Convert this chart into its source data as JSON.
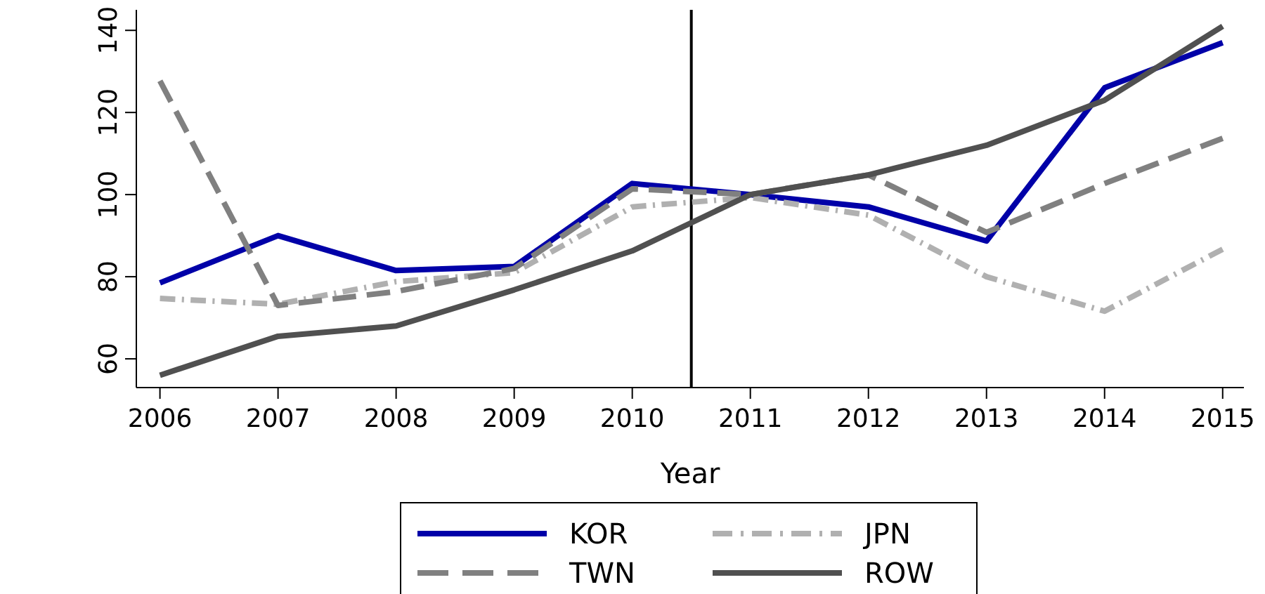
{
  "chart_data": {
    "type": "line",
    "xlabel": "Year",
    "x": [
      2006,
      2007,
      2008,
      2009,
      2010,
      2011,
      2012,
      2013,
      2014,
      2015
    ],
    "xlim": [
      2005.8,
      2015.18
    ],
    "xticks": [
      2006,
      2007,
      2008,
      2009,
      2010,
      2011,
      2012,
      2013,
      2014,
      2015
    ],
    "ylim": [
      53,
      145
    ],
    "yticks": [
      60,
      80,
      100,
      120,
      140
    ],
    "grid": false,
    "legend": "bottom",
    "marker": "none",
    "ref_lines": [
      {
        "axis": "x",
        "value": 2010.5,
        "color": "#000000"
      }
    ],
    "series": [
      {
        "name": "KOR",
        "color": "#0000a8",
        "line_style": "solid",
        "values": [
          78.5,
          90,
          81.5,
          82.5,
          102.7,
          100,
          97,
          88.7,
          126,
          137
        ]
      },
      {
        "name": "JPN",
        "color": "#b0b0b0",
        "line_style": "dashdot",
        "values": [
          74.7,
          73.3,
          78.8,
          81,
          97,
          99.3,
          95,
          80,
          71.6,
          86.7
        ]
      },
      {
        "name": "TWN",
        "color": "#808080",
        "line_style": "dashed",
        "values": [
          127.7,
          73,
          76.4,
          82,
          101.4,
          100,
          104.8,
          90.8,
          102.7,
          113.7
        ]
      },
      {
        "name": "ROW",
        "color": "#505050",
        "line_style": "solid",
        "values": [
          56,
          65.5,
          68,
          76.8,
          86.3,
          100,
          104.8,
          112,
          123,
          141
        ]
      }
    ]
  }
}
